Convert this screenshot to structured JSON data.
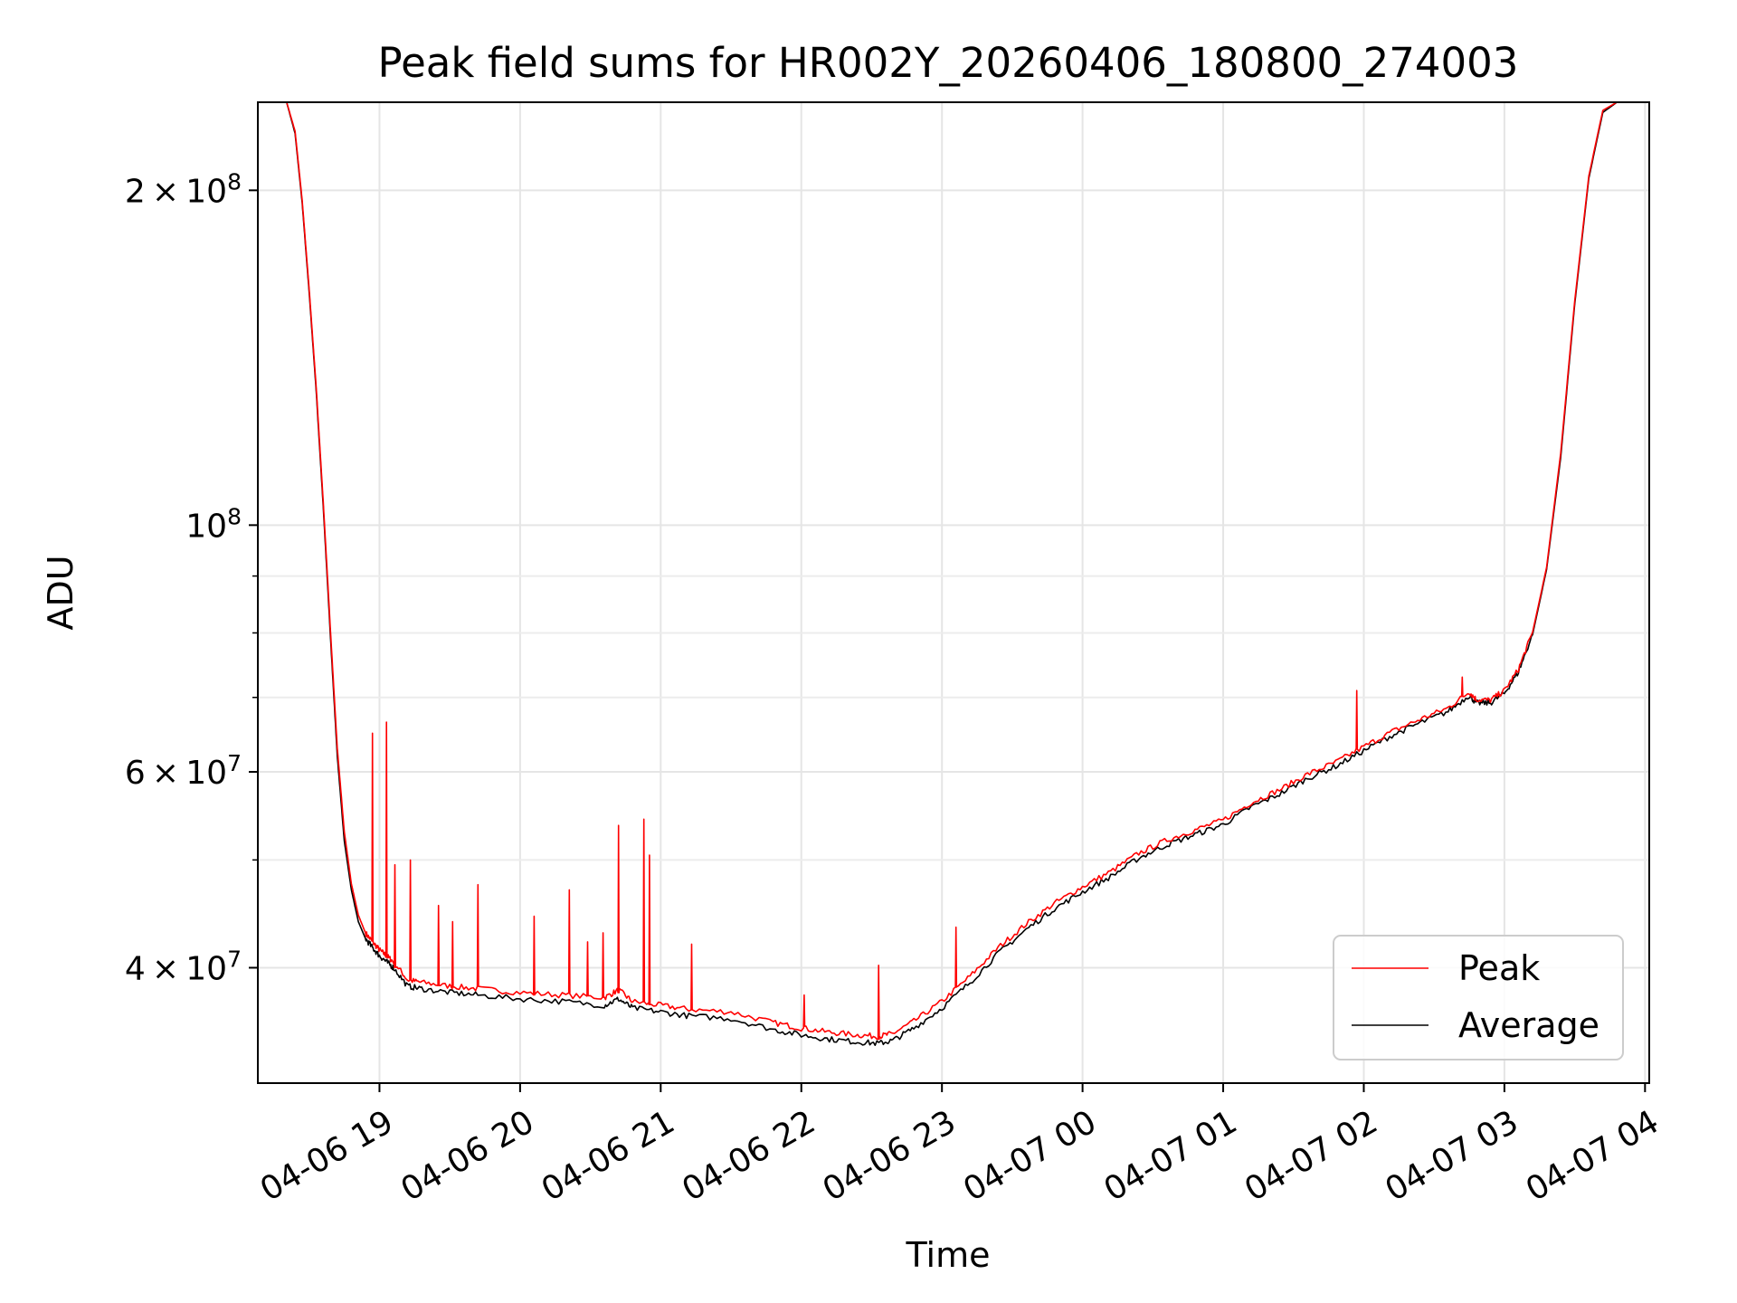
{
  "chart_data": {
    "type": "line",
    "title": "Peak field sums for HR002Y_20260406_180800_274003",
    "xlabel": "Time",
    "ylabel": "ADU",
    "yscale": "log",
    "xlim": [
      -0.865,
      9.03
    ],
    "ylim": [
      31500000,
      240000000
    ],
    "grid": true,
    "legend": {
      "placement": "bottom-right",
      "entries": [
        "Peak",
        "Average"
      ]
    },
    "x_ticks": [
      {
        "value": 0,
        "label": "04-06 19"
      },
      {
        "value": 1,
        "label": "04-06 20"
      },
      {
        "value": 2,
        "label": "04-06 21"
      },
      {
        "value": 3,
        "label": "04-06 22"
      },
      {
        "value": 4,
        "label": "04-06 23"
      },
      {
        "value": 5,
        "label": "04-07 00"
      },
      {
        "value": 6,
        "label": "04-07 01"
      },
      {
        "value": 7,
        "label": "04-07 02"
      },
      {
        "value": 8,
        "label": "04-07 03"
      },
      {
        "value": 9,
        "label": "04-07 04"
      }
    ],
    "y_ticks_major": [
      {
        "value": 40000000,
        "mant": "4",
        "exp": "7"
      },
      {
        "value": 60000000,
        "mant": "6",
        "exp": "7"
      },
      {
        "value": 100000000,
        "mant": "",
        "exp": "8"
      },
      {
        "value": 200000000,
        "mant": "2",
        "exp": "8"
      }
    ],
    "y_grid_minor": [
      50000000,
      70000000,
      80000000,
      90000000
    ],
    "series": [
      {
        "name": "Average",
        "color": "#000000",
        "x": [
          -0.865,
          -0.66,
          -0.6,
          -0.55,
          -0.5,
          -0.45,
          -0.4,
          -0.35,
          -0.3,
          -0.25,
          -0.2,
          -0.15,
          -0.1,
          -0.05,
          0.0,
          0.05,
          0.1,
          0.2,
          0.3,
          0.5,
          0.7,
          1.0,
          1.3,
          1.6,
          1.7,
          1.8,
          2.0,
          2.2,
          2.5,
          2.8,
          3.0,
          3.2,
          3.4,
          3.55,
          3.65,
          3.8,
          4.0,
          4.2,
          4.4,
          4.6,
          4.8,
          5.0,
          5.2,
          5.4,
          5.6,
          5.8,
          6.0,
          6.2,
          6.4,
          6.6,
          6.8,
          7.0,
          7.2,
          7.4,
          7.6,
          7.75,
          7.8,
          7.9,
          8.0,
          8.1,
          8.2,
          8.3,
          8.4,
          8.5,
          8.6,
          8.7,
          8.8,
          8.9,
          9.03
        ],
        "y": [
          240000000,
          240000000,
          225000000,
          195000000,
          162000000,
          132000000,
          104000000,
          80000000,
          62000000,
          52000000,
          47000000,
          44000000,
          42500000,
          41700000,
          41000000,
          40500000,
          40000000,
          38500000,
          38300000,
          38000000,
          37800000,
          37500000,
          37300000,
          37000000,
          37500000,
          36800000,
          36500000,
          36200000,
          36000000,
          35200000,
          34800000,
          34500000,
          34300000,
          34200000,
          34400000,
          35300000,
          36800000,
          38800000,
          41200000,
          43300000,
          45200000,
          46800000,
          48300000,
          50200000,
          51600000,
          52700000,
          53800000,
          55800000,
          57300000,
          59200000,
          60700000,
          62700000,
          64700000,
          66400000,
          68000000,
          70300000,
          69200000,
          69200000,
          70600000,
          73800000,
          79700000,
          91200000,
          115000000,
          158000000,
          205000000,
          235000000,
          240000000,
          240000000,
          240000000
        ]
      },
      {
        "name": "Peak",
        "color": "#ff0000",
        "x": [
          -0.865,
          -0.66,
          -0.6,
          -0.55,
          -0.5,
          -0.45,
          -0.4,
          -0.35,
          -0.3,
          -0.25,
          -0.2,
          -0.15,
          -0.1,
          -0.05,
          0.0,
          0.05,
          0.1,
          0.2,
          0.3,
          0.5,
          0.7,
          1.0,
          1.3,
          1.6,
          1.7,
          1.8,
          2.0,
          2.2,
          2.5,
          2.8,
          3.0,
          3.2,
          3.4,
          3.55,
          3.65,
          3.8,
          4.0,
          4.2,
          4.4,
          4.6,
          4.8,
          5.0,
          5.2,
          5.4,
          5.6,
          5.8,
          6.0,
          6.2,
          6.4,
          6.6,
          6.8,
          7.0,
          7.2,
          7.4,
          7.6,
          7.75,
          7.8,
          7.9,
          8.0,
          8.1,
          8.2,
          8.3,
          8.4,
          8.5,
          8.6,
          8.7,
          8.8,
          8.9,
          9.03
        ],
        "y": [
          240000000,
          240000000,
          226000000,
          196000000,
          163000000,
          133000000,
          105000000,
          81000000,
          63000000,
          53000000,
          47600000,
          44600000,
          43000000,
          42200000,
          41500000,
          41000000,
          40500000,
          39000000,
          38800000,
          38500000,
          38300000,
          38000000,
          37800000,
          37600000,
          38200000,
          37300000,
          37000000,
          36700000,
          36500000,
          35700000,
          35300000,
          35000000,
          34800000,
          34700000,
          34900000,
          35800000,
          37300000,
          39300000,
          41700000,
          43800000,
          45700000,
          47300000,
          48800000,
          50700000,
          52100000,
          53200000,
          54300000,
          56300000,
          57800000,
          59700000,
          61200000,
          63200000,
          65200000,
          66900000,
          68500000,
          70800000,
          69700000,
          69600000,
          71000000,
          74200000,
          80100000,
          91600000,
          116000000,
          159000000,
          206000000,
          236000000,
          240000000,
          240000000,
          240000000
        ],
        "spikes": [
          {
            "x": -0.05,
            "y": 65000000
          },
          {
            "x": 0.05,
            "y": 66500000
          },
          {
            "x": 0.11,
            "y": 49500000
          },
          {
            "x": 0.22,
            "y": 50000000
          },
          {
            "x": 0.42,
            "y": 45500000
          },
          {
            "x": 0.52,
            "y": 44000000
          },
          {
            "x": 0.7,
            "y": 47500000
          },
          {
            "x": 1.1,
            "y": 44500000
          },
          {
            "x": 1.35,
            "y": 47000000
          },
          {
            "x": 1.48,
            "y": 42200000
          },
          {
            "x": 1.59,
            "y": 43000000
          },
          {
            "x": 1.7,
            "y": 53700000
          },
          {
            "x": 1.88,
            "y": 54400000
          },
          {
            "x": 1.92,
            "y": 50500000
          },
          {
            "x": 2.22,
            "y": 42000000
          },
          {
            "x": 3.02,
            "y": 37800000
          },
          {
            "x": 3.55,
            "y": 40200000
          },
          {
            "x": 4.1,
            "y": 43500000
          },
          {
            "x": 6.95,
            "y": 71000000
          },
          {
            "x": 7.7,
            "y": 73000000
          }
        ]
      }
    ]
  }
}
